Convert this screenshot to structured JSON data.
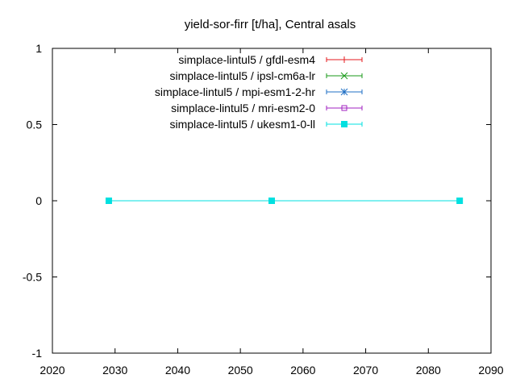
{
  "chart_data": {
    "type": "line",
    "title": "yield-sor-firr [t/ha], Central asals",
    "xlabel": "",
    "ylabel": "",
    "xlim": [
      2020,
      2090
    ],
    "ylim": [
      -1,
      1
    ],
    "xticks": [
      2020,
      2030,
      2040,
      2050,
      2060,
      2070,
      2080,
      2090
    ],
    "yticks": [
      -1,
      -0.5,
      0,
      0.5,
      1
    ],
    "ytick_labels": [
      "-1",
      "-0.5",
      "0",
      "0.5",
      "1"
    ],
    "grid": false,
    "legend_position": "top-right",
    "series": [
      {
        "name": "simplace-lintul5 / gfdl-esm4",
        "color": "#e41a1c",
        "marker": "plus",
        "x": [],
        "y": []
      },
      {
        "name": "simplace-lintul5 / ipsl-cm6a-lr",
        "color": "#1a9a1a",
        "marker": "cross",
        "x": [],
        "y": []
      },
      {
        "name": "simplace-lintul5 / mpi-esm1-2-hr",
        "color": "#1f6fc4",
        "marker": "star",
        "x": [],
        "y": []
      },
      {
        "name": "simplace-lintul5 / mri-esm2-0",
        "color": "#a020c0",
        "marker": "open-square",
        "x": [],
        "y": []
      },
      {
        "name": "simplace-lintul5 / ukesm1-0-ll",
        "color": "#00e0e0",
        "marker": "filled-square",
        "x": [
          2029,
          2055,
          2085
        ],
        "y": [
          0,
          0,
          0
        ]
      }
    ]
  }
}
